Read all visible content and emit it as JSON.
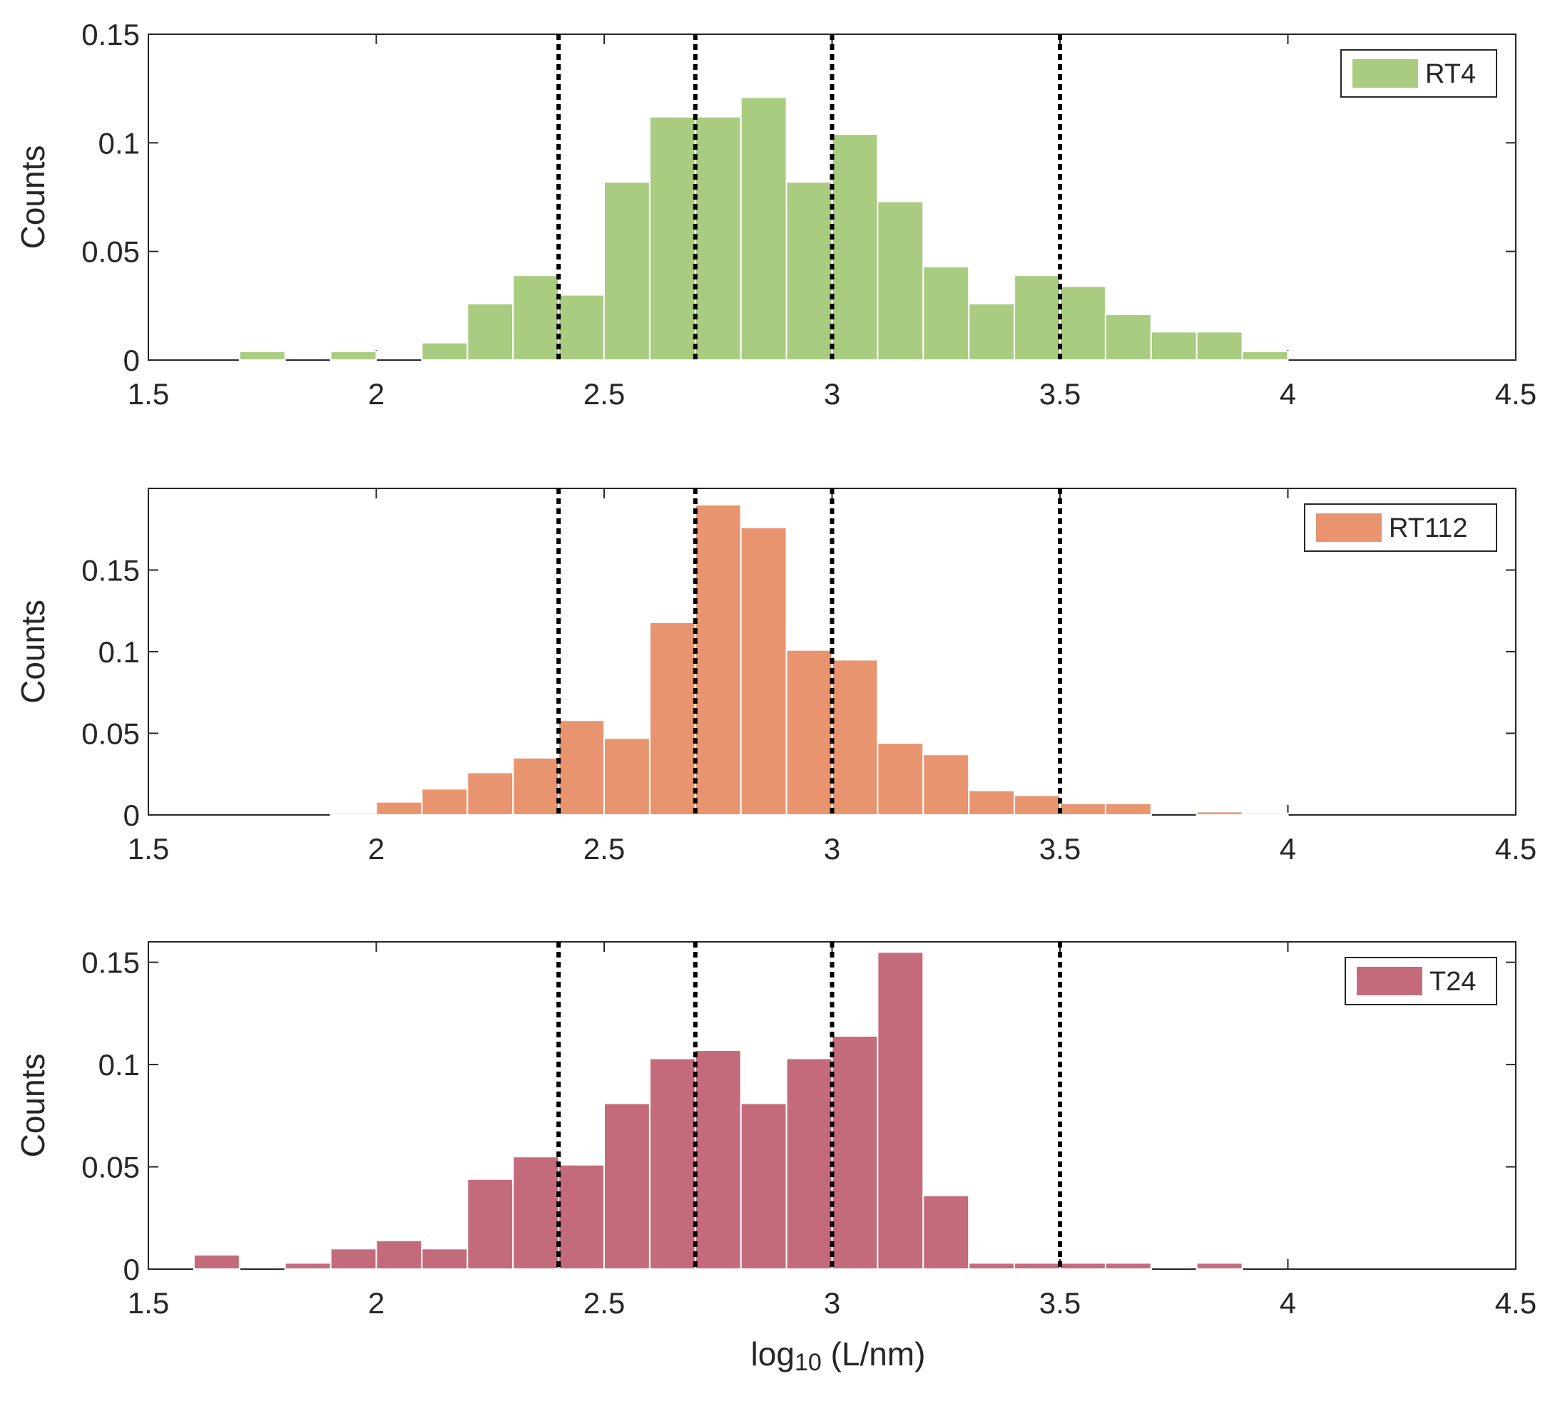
{
  "chart_data": [
    {
      "type": "bar",
      "subtype": "histogram",
      "legend": "RT4",
      "legend_position": "top-right",
      "color": "#a9cc80",
      "xlim": [
        1.5,
        4.5
      ],
      "ylim": [
        0,
        0.15
      ],
      "xticks": [
        "1.5",
        "2",
        "2.5",
        "3",
        "3.5",
        "4",
        "4.5"
      ],
      "yticks": [
        "0",
        "0.05",
        "0.1",
        "0.15"
      ],
      "ylabel": "Counts",
      "bin_start": 1.7,
      "bin_width": 0.1,
      "values": [
        0.004,
        0,
        0.004,
        0,
        0.008,
        0.026,
        0.039,
        0.03,
        0.082,
        0.112,
        0.112,
        0.121,
        0.082,
        0.104,
        0.073,
        0.043,
        0.026,
        0.039,
        0.034,
        0.021,
        0.013,
        0.013,
        0.004
      ],
      "vlines": [
        2.4,
        2.7,
        3.0,
        3.5
      ]
    },
    {
      "type": "bar",
      "subtype": "histogram",
      "legend": "RT112",
      "legend_position": "top-right",
      "color": "#e8956f",
      "xlim": [
        1.5,
        4.5
      ],
      "ylim": [
        0,
        0.2
      ],
      "xticks": [
        "1.5",
        "2",
        "2.5",
        "3",
        "3.5",
        "4",
        "4.5"
      ],
      "yticks": [
        "0",
        "0.05",
        "0.1",
        "0.15"
      ],
      "ylabel": "Counts",
      "bin_start": 1.9,
      "bin_width": 0.1,
      "values": [
        0.001,
        0.008,
        0.016,
        0.026,
        0.035,
        0.058,
        0.047,
        0.118,
        0.19,
        0.176,
        0.101,
        0.095,
        0.044,
        0.037,
        0.015,
        0.012,
        0.007,
        0.007,
        0,
        0.002,
        0.001
      ],
      "vlines": [
        2.4,
        2.7,
        3.0,
        3.5
      ]
    },
    {
      "type": "bar",
      "subtype": "histogram",
      "legend": "T24",
      "legend_position": "top-right",
      "color": "#c46b7b",
      "xlim": [
        1.5,
        4.5
      ],
      "ylim": [
        0,
        0.16
      ],
      "xticks": [
        "1.5",
        "2",
        "2.5",
        "3",
        "3.5",
        "4",
        "4.5"
      ],
      "yticks": [
        "0",
        "0.05",
        "0.1",
        "0.15"
      ],
      "ylabel": "Counts",
      "xlabel_prefix": "log",
      "xlabel_subscript": "10",
      "xlabel_suffix": " (L/nm)",
      "bin_start": 1.6,
      "bin_width": 0.1,
      "values": [
        0.007,
        0,
        0.003,
        0.01,
        0.014,
        0.01,
        0.044,
        0.055,
        0.051,
        0.081,
        0.103,
        0.107,
        0.081,
        0.103,
        0.114,
        0.155,
        0.036,
        0.003,
        0.003,
        0.003,
        0.003,
        0,
        0.003
      ],
      "vlines": [
        2.4,
        2.7,
        3.0,
        3.5
      ]
    }
  ]
}
